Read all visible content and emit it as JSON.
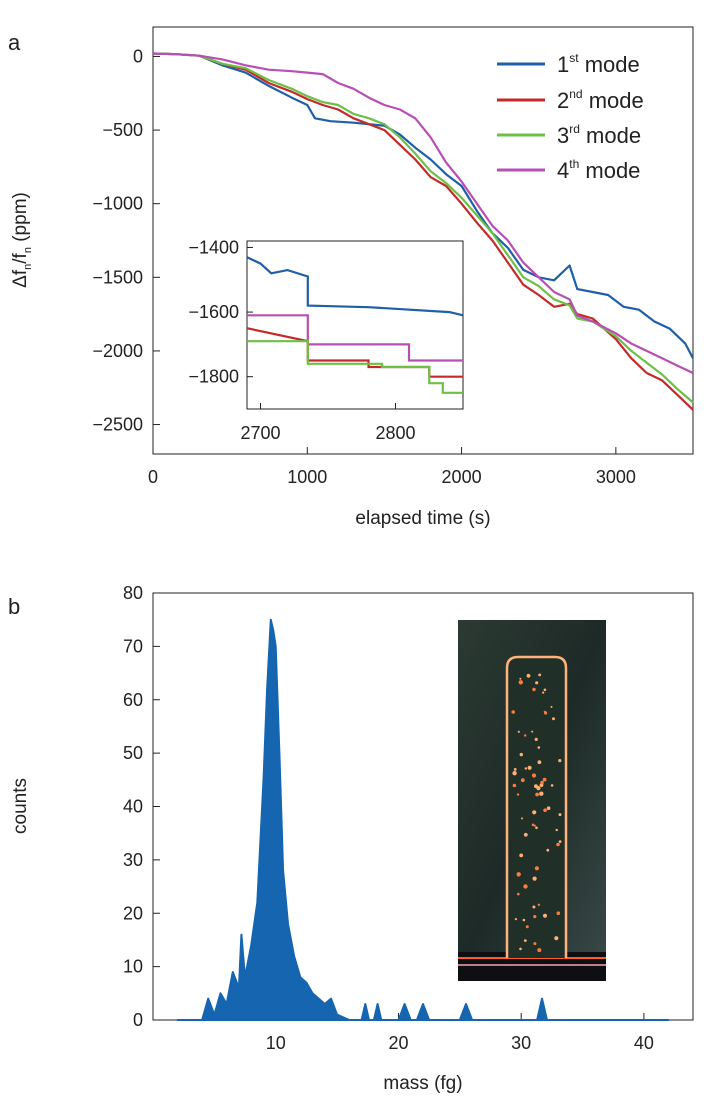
{
  "chart_data": [
    {
      "panel_label": "a",
      "type": "line",
      "xlabel": "elapsed time (s)",
      "ylabel": "Δf",
      "ylabel_sub1": "n",
      "ylabel_mid": "/f",
      "ylabel_sub2": "n",
      "ylabel_tail": " (ppm)",
      "xlim": [
        0,
        3500
      ],
      "ylim": [
        -2700,
        200
      ],
      "xticks": [
        0,
        1000,
        2000,
        3000
      ],
      "yticks": [
        0,
        -500,
        -1000,
        -1500,
        -2000,
        -2500
      ],
      "xtick_labels": [
        "0",
        "1000",
        "2000",
        "3000"
      ],
      "ytick_labels": [
        "0",
        "−500",
        "−1000",
        "−1500",
        "−2000",
        "−2500"
      ],
      "grid": false,
      "legend_position": "top-right",
      "series": [
        {
          "num": "1",
          "sup": "st",
          "word": " mode",
          "color": "#1f5fa8",
          "x": [
            0,
            150,
            300,
            450,
            600,
            750,
            900,
            1000,
            1050,
            1150,
            1300,
            1500,
            1600,
            1700,
            1800,
            1900,
            2000,
            2100,
            2200,
            2300,
            2400,
            2500,
            2600,
            2700,
            2750,
            2850,
            2950,
            3050,
            3150,
            3250,
            3350,
            3450,
            3500
          ],
          "y": [
            20,
            15,
            5,
            -60,
            -110,
            -200,
            -280,
            -330,
            -420,
            -440,
            -450,
            -470,
            -530,
            -620,
            -700,
            -800,
            -880,
            -1050,
            -1200,
            -1300,
            -1450,
            -1500,
            -1520,
            -1420,
            -1580,
            -1600,
            -1620,
            -1700,
            -1720,
            -1800,
            -1850,
            -1950,
            -2050
          ]
        },
        {
          "num": "2",
          "sup": "nd",
          "word": " mode",
          "color": "#c42a2a",
          "x": [
            0,
            150,
            300,
            450,
            600,
            750,
            900,
            1000,
            1100,
            1200,
            1300,
            1400,
            1500,
            1600,
            1700,
            1800,
            1900,
            2000,
            2100,
            2200,
            2300,
            2400,
            2500,
            2600,
            2700,
            2750,
            2850,
            3000,
            3100,
            3200,
            3300,
            3400,
            3500
          ],
          "y": [
            20,
            15,
            5,
            -50,
            -90,
            -180,
            -240,
            -290,
            -330,
            -360,
            -420,
            -460,
            -500,
            -600,
            -700,
            -820,
            -880,
            -1000,
            -1130,
            -1250,
            -1400,
            -1550,
            -1620,
            -1700,
            -1680,
            -1750,
            -1780,
            -1920,
            -2050,
            -2150,
            -2200,
            -2300,
            -2400
          ]
        },
        {
          "num": "3",
          "sup": "rd",
          "word": " mode",
          "color": "#6dbf45",
          "x": [
            0,
            150,
            300,
            450,
            600,
            750,
            900,
            1000,
            1100,
            1200,
            1300,
            1400,
            1500,
            1600,
            1700,
            1800,
            1900,
            2000,
            2100,
            2200,
            2300,
            2400,
            2500,
            2600,
            2700,
            2750,
            2850,
            3000,
            3100,
            3200,
            3300,
            3400,
            3500
          ],
          "y": [
            20,
            15,
            5,
            -50,
            -80,
            -160,
            -220,
            -270,
            -310,
            -330,
            -390,
            -420,
            -460,
            -550,
            -660,
            -780,
            -860,
            -960,
            -1080,
            -1200,
            -1350,
            -1500,
            -1560,
            -1650,
            -1690,
            -1780,
            -1800,
            -1900,
            -2000,
            -2080,
            -2160,
            -2260,
            -2350
          ]
        },
        {
          "num": "4",
          "sup": "th",
          "word": " mode",
          "color": "#b84fb5",
          "x": [
            0,
            150,
            300,
            450,
            600,
            750,
            900,
            1000,
            1100,
            1200,
            1300,
            1400,
            1500,
            1600,
            1700,
            1800,
            1900,
            2000,
            2100,
            2200,
            2300,
            2400,
            2500,
            2600,
            2700,
            2750,
            2850,
            3000,
            3100,
            3200,
            3300,
            3400,
            3500
          ],
          "y": [
            20,
            15,
            5,
            -20,
            -60,
            -90,
            -100,
            -110,
            -120,
            -180,
            -220,
            -280,
            -330,
            -360,
            -420,
            -550,
            -720,
            -850,
            -1000,
            -1150,
            -1250,
            -1400,
            -1500,
            -1600,
            -1650,
            -1760,
            -1800,
            -1880,
            -1950,
            -2000,
            -2050,
            -2100,
            -2150
          ]
        }
      ],
      "inset": {
        "xlim": [
          2690,
          2850
        ],
        "ylim": [
          -1900,
          -1380
        ],
        "xticks": [
          2700,
          2800
        ],
        "yticks": [
          -1400,
          -1600,
          -1800
        ],
        "xtick_labels": [
          "2700",
          "2800"
        ],
        "ytick_labels": [
          "−1400",
          "−1600",
          "−1800"
        ],
        "series": [
          {
            "color": "#1f5fa8",
            "x": [
              2690,
              2700,
              2708,
              2720,
              2735,
              2735,
              2780,
              2800,
              2840,
              2850
            ],
            "y": [
              -1430,
              -1450,
              -1480,
              -1470,
              -1490,
              -1580,
              -1585,
              -1590,
              -1600,
              -1610
            ]
          },
          {
            "color": "#b84fb5",
            "x": [
              2690,
              2735,
              2735,
              2810,
              2810,
              2850
            ],
            "y": [
              -1610,
              -1610,
              -1700,
              -1700,
              -1750,
              -1750
            ]
          },
          {
            "color": "#c42a2a",
            "x": [
              2690,
              2735,
              2735,
              2780,
              2780,
              2825,
              2825,
              2850
            ],
            "y": [
              -1650,
              -1690,
              -1750,
              -1750,
              -1770,
              -1770,
              -1800,
              -1800
            ]
          },
          {
            "color": "#6dbf45",
            "x": [
              2690,
              2735,
              2735,
              2790,
              2790,
              2825,
              2825,
              2835,
              2835,
              2850
            ],
            "y": [
              -1690,
              -1690,
              -1760,
              -1760,
              -1770,
              -1770,
              -1820,
              -1820,
              -1850,
              -1850
            ]
          }
        ]
      }
    },
    {
      "panel_label": "b",
      "type": "area",
      "xlabel": "mass (fg)",
      "ylabel": "counts",
      "xlim": [
        0,
        44
      ],
      "ylim": [
        0,
        80
      ],
      "xticks": [
        10,
        20,
        30,
        40
      ],
      "yticks": [
        0,
        10,
        20,
        30,
        40,
        50,
        60,
        70,
        80
      ],
      "xtick_labels": [
        "10",
        "20",
        "30",
        "40"
      ],
      "ytick_labels": [
        "0",
        "10",
        "20",
        "30",
        "40",
        "50",
        "60",
        "70",
        "80"
      ],
      "grid": false,
      "color": "#1565b0",
      "x": [
        2,
        4,
        4.5,
        5,
        5.5,
        6,
        6.5,
        7,
        7.2,
        7.5,
        8,
        8.5,
        9,
        9.3,
        9.6,
        9.8,
        10,
        10.3,
        10.6,
        11,
        11.5,
        12,
        12.5,
        13,
        13.5,
        14,
        14.5,
        15,
        16,
        17,
        17.3,
        17.6,
        18,
        18.3,
        18.6,
        19,
        20,
        20.5,
        21,
        21.5,
        22,
        22.5,
        23,
        25,
        25.5,
        26,
        30,
        31.3,
        31.7,
        32.1,
        33,
        42
      ],
      "y": [
        0,
        0,
        4,
        1,
        5,
        3,
        9,
        6,
        16,
        8,
        14,
        22,
        45,
        62,
        75,
        73,
        70,
        50,
        28,
        18,
        12,
        8,
        7,
        5,
        4,
        3,
        4,
        1,
        0,
        0,
        3,
        0,
        0,
        3,
        0,
        0,
        0,
        3,
        0,
        0,
        3,
        0,
        0,
        0,
        3,
        0,
        0,
        0,
        4,
        0,
        0,
        0
      ]
    }
  ],
  "inset_image": {
    "description_icon": "microchannel-fluorescence-photo"
  }
}
